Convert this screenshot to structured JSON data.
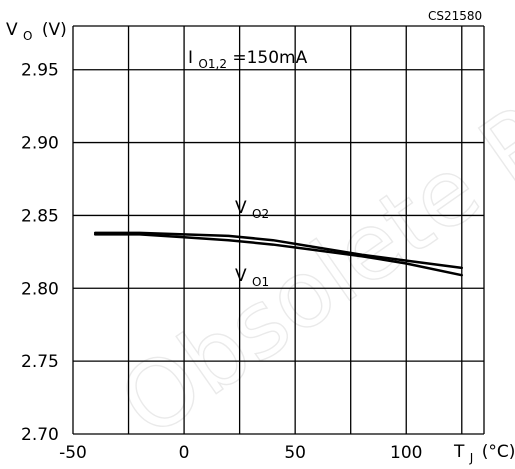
{
  "figure_code": "CS21580",
  "watermark": "Obsolete Product(s)",
  "chart_data": {
    "type": "line",
    "title": "",
    "xlabel": "TJ (°C)",
    "xlabel_main": "T",
    "xlabel_sub": "J",
    "xlabel_unit": "(°C)",
    "ylabel": "VO (V)",
    "ylabel_main": "V",
    "ylabel_sub": "O",
    "ylabel_unit": "(V)",
    "annotation": {
      "main": "I",
      "sub": "O1,2",
      "rest": "=150mA"
    },
    "xlim": [
      -50,
      135
    ],
    "ylim": [
      2.7,
      2.98
    ],
    "x_ticks": [
      -50,
      0,
      50,
      100
    ],
    "y_ticks": [
      2.7,
      2.75,
      2.8,
      2.85,
      2.9,
      2.95
    ],
    "x_tick_labels": [
      "-50",
      "0",
      "50",
      "100"
    ],
    "y_tick_labels": [
      "2.70",
      "2.75",
      "2.80",
      "2.85",
      "2.90",
      "2.95"
    ],
    "grid": true,
    "series": [
      {
        "name": "VO2",
        "label_main": "V",
        "label_sub": "O2",
        "x": [
          -40,
          -20,
          0,
          20,
          40,
          60,
          80,
          100,
          125
        ],
        "values": [
          2.838,
          2.838,
          2.837,
          2.836,
          2.833,
          2.828,
          2.823,
          2.819,
          2.814
        ]
      },
      {
        "name": "VO1",
        "label_main": "V",
        "label_sub": "O1",
        "x": [
          -40,
          -20,
          0,
          20,
          40,
          60,
          80,
          100,
          125
        ],
        "values": [
          2.837,
          2.837,
          2.835,
          2.833,
          2.83,
          2.826,
          2.822,
          2.817,
          2.809
        ]
      }
    ]
  }
}
